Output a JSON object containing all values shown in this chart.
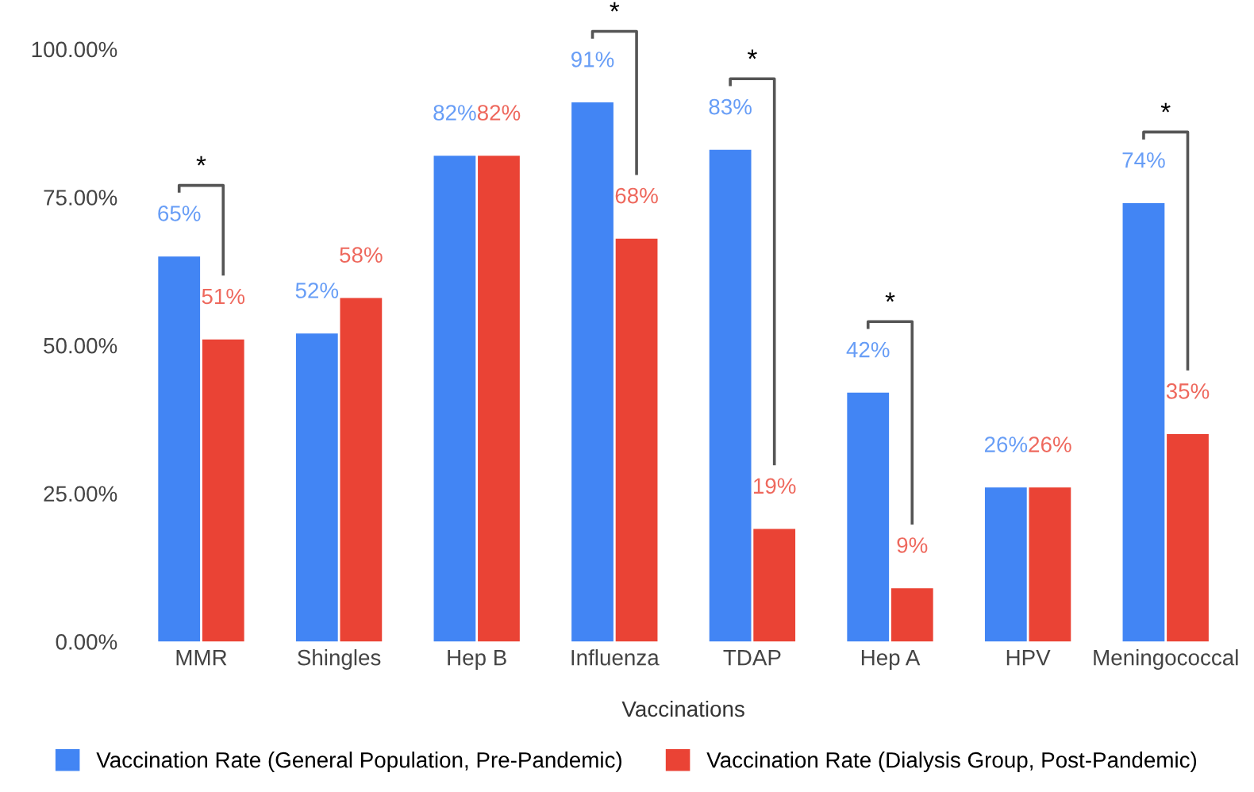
{
  "chart_data": {
    "type": "bar",
    "xlabel": "Vaccinations",
    "categories": [
      "MMR",
      "Shingles",
      "Hep B",
      "Influenza",
      "TDAP",
      "Hep A",
      "HPV",
      "Meningococcal"
    ],
    "series": [
      {
        "name": "Vaccination Rate (General Population, Pre-Pandemic)",
        "color": "#4285f4",
        "values": [
          65,
          52,
          82,
          91,
          83,
          42,
          26,
          74
        ],
        "value_labels": [
          "65%",
          "52%",
          "82%",
          "91%",
          "83%",
          "42%",
          "26%",
          "74%"
        ]
      },
      {
        "name": "Vaccination Rate (Dialysis Group, Post-Pandemic)",
        "color": "#ea4335",
        "values": [
          51,
          58,
          82,
          68,
          19,
          9,
          26,
          35
        ],
        "value_labels": [
          "51%",
          "58%",
          "82%",
          "68%",
          "19%",
          "9%",
          "26%",
          "35%"
        ]
      }
    ],
    "ylim": [
      0,
      100
    ],
    "yticks": [
      {
        "value": 0,
        "label": "0.00%"
      },
      {
        "value": 25,
        "label": "25.00%"
      },
      {
        "value": 50,
        "label": "50.00%"
      },
      {
        "value": 75,
        "label": "75.00%"
      },
      {
        "value": 100,
        "label": "100.00%"
      }
    ],
    "annotations": [
      "*",
      "*",
      "*",
      "*",
      "*"
    ],
    "grid": false,
    "legend": "bottom"
  }
}
